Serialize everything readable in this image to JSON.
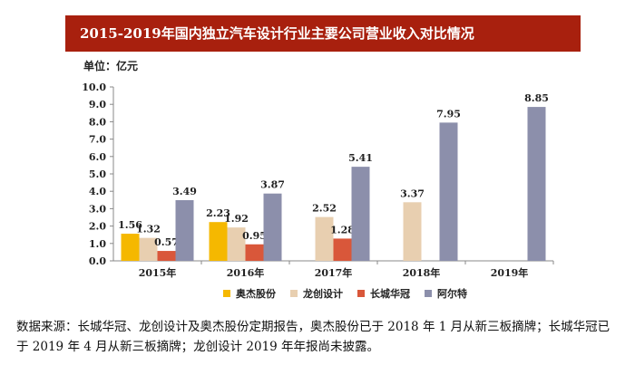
{
  "title": "2015-2019年国内独立汽车设计行业主要公司营业收入对比情况",
  "unit_label": "单位：亿元",
  "source_note": "数据来源：长城华冠、龙创设计及奥杰股份定期报告，奥杰股份已于 2018 年 1 月从新三板摘牌；长城华冠已于 2019 年 4 月从新三板摘牌；龙创设计 2019 年年报尚未披露。",
  "chart_data": {
    "type": "bar",
    "categories": [
      "2015年",
      "2016年",
      "2017年",
      "2018年",
      "2019年"
    ],
    "series": [
      {
        "name": "奥杰股份",
        "color": "#f5b800",
        "values": [
          1.56,
          2.23,
          null,
          null,
          null
        ]
      },
      {
        "name": "龙创设计",
        "color": "#e8cfb0",
        "values": [
          1.32,
          1.92,
          2.52,
          3.37,
          null
        ]
      },
      {
        "name": "长城华冠",
        "color": "#d9573a",
        "values": [
          0.57,
          0.95,
          1.28,
          null,
          null
        ]
      },
      {
        "name": "阿尔特",
        "color": "#8c8fab",
        "values": [
          3.49,
          3.87,
          5.41,
          7.95,
          8.85
        ]
      }
    ],
    "ylim": [
      0,
      10
    ],
    "yticks": [
      "0.0",
      "1.0",
      "2.0",
      "3.0",
      "4.0",
      "5.0",
      "6.0",
      "7.0",
      "8.0",
      "9.0",
      "10.0"
    ],
    "legend_position": "bottom",
    "grid": false
  }
}
